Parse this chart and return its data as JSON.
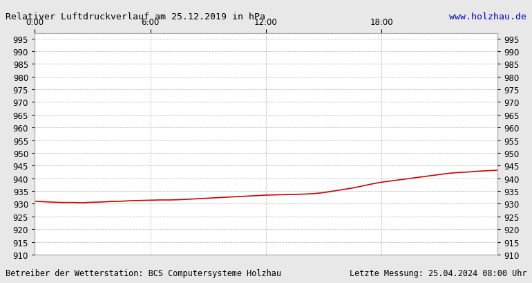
{
  "title": "Relativer Luftdruckverlauf am 25.12.2019 in hPa",
  "url_text": "www.holzhau.de",
  "footer_left": "Betreiber der Wetterstation: BCS Computersysteme Holzhau",
  "footer_right": "Letzte Messung: 25.04.2024 08:00 Uhr",
  "x_ticks_labels": [
    "0:00",
    "6:00",
    "12:00",
    "18:00"
  ],
  "x_ticks_positions": [
    0,
    360,
    720,
    1080
  ],
  "x_max": 1440,
  "ylim": [
    910,
    997
  ],
  "yticks": [
    910,
    915,
    920,
    925,
    930,
    935,
    940,
    945,
    950,
    955,
    960,
    965,
    970,
    975,
    980,
    985,
    990,
    995
  ],
  "line_color": "#cc0000",
  "background_color": "#e8e8e8",
  "plot_bg_color": "#ffffff",
  "grid_color": "#bbbbbb",
  "title_color": "#000000",
  "url_color": "#0000cc",
  "footer_color": "#000000",
  "pressure_data_x": [
    0,
    30,
    60,
    90,
    120,
    150,
    180,
    210,
    240,
    270,
    300,
    330,
    360,
    390,
    420,
    450,
    480,
    510,
    540,
    570,
    600,
    630,
    660,
    690,
    720,
    750,
    780,
    810,
    840,
    870,
    900,
    930,
    960,
    990,
    1020,
    1050,
    1080,
    1110,
    1140,
    1170,
    1200,
    1230,
    1260,
    1290,
    1320,
    1350,
    1380,
    1410,
    1440
  ],
  "pressure_data_y": [
    931.0,
    930.8,
    930.6,
    930.5,
    930.5,
    930.4,
    930.6,
    930.7,
    930.9,
    931.0,
    931.2,
    931.3,
    931.4,
    931.5,
    931.5,
    931.6,
    931.8,
    932.0,
    932.2,
    932.4,
    932.6,
    932.8,
    933.0,
    933.2,
    933.4,
    933.5,
    933.6,
    933.7,
    933.8,
    934.0,
    934.4,
    935.0,
    935.6,
    936.2,
    937.0,
    937.8,
    938.5,
    939.0,
    939.5,
    940.0,
    940.5,
    941.0,
    941.5,
    942.0,
    942.3,
    942.5,
    942.8,
    943.0,
    943.2
  ]
}
